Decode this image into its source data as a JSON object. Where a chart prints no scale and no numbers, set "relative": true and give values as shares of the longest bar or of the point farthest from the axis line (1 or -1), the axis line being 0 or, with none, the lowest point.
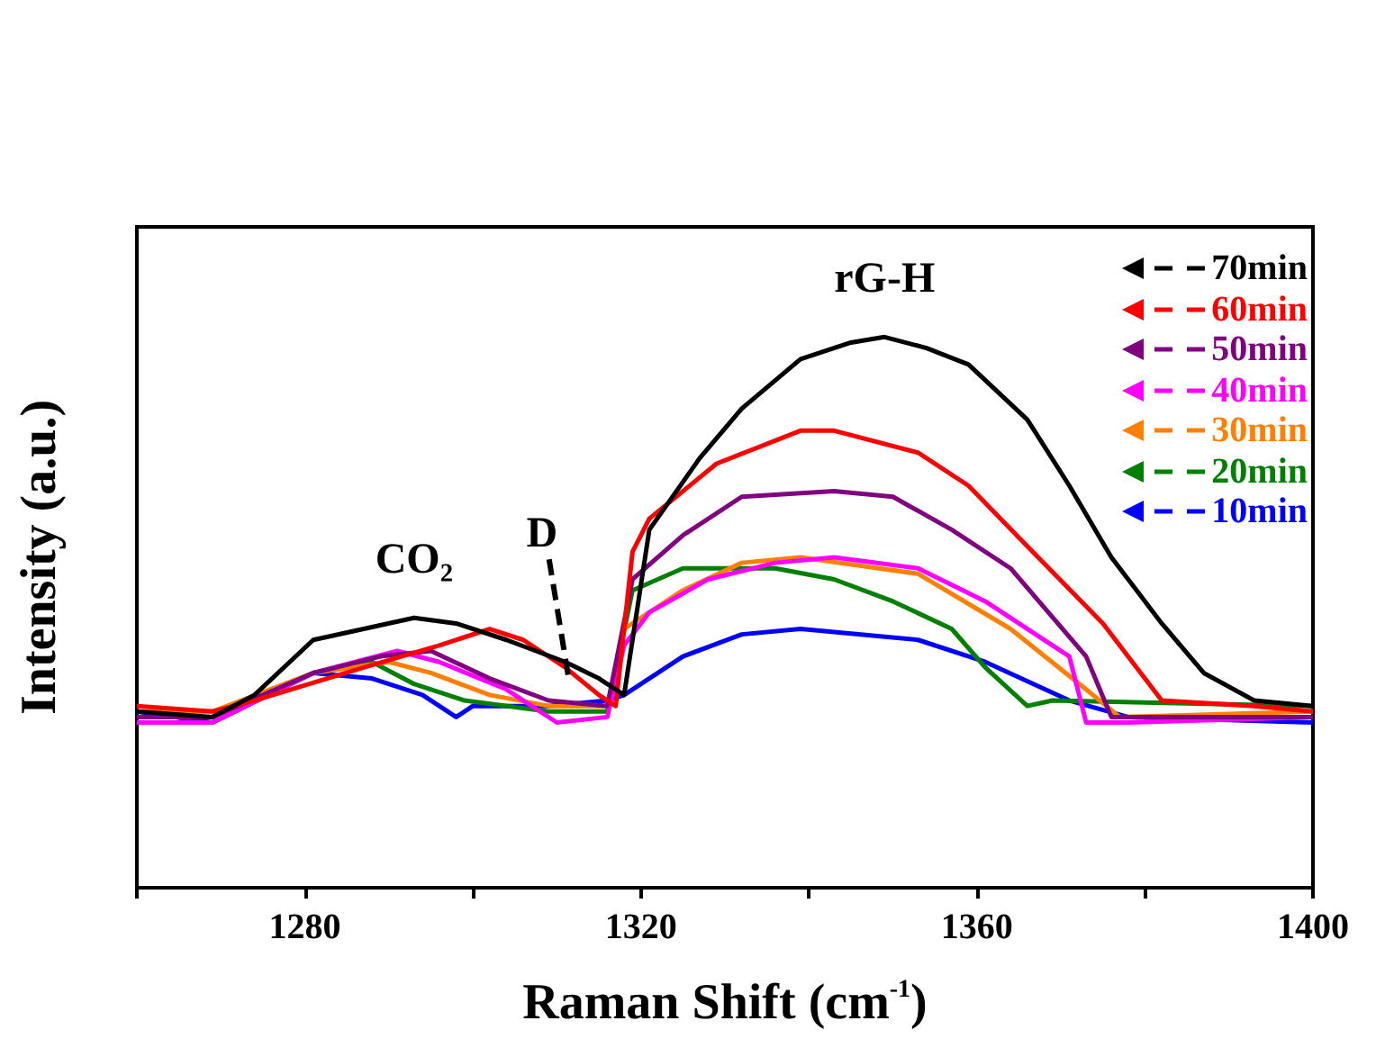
{
  "chart_data": {
    "type": "line",
    "relative": true,
    "xlabel": "Raman Shift (cm$^{-1}$)",
    "ylabel": "Intensity (a.u.)",
    "xlim": [
      1260,
      1400
    ],
    "xticks": [
      {
        "value": 1260,
        "label": null
      },
      1280,
      {
        "value": 1300,
        "label": null
      },
      1320,
      {
        "value": 1340,
        "label": null
      },
      1360,
      {
        "value": 1380,
        "label": null
      },
      1400
    ],
    "grid": false,
    "legend": "top right",
    "annotations": [
      {
        "text": "CO₂",
        "x": 1293,
        "y": 0.49
      },
      {
        "text": "D",
        "x": 1311,
        "y": 0.41
      },
      {
        "text": "rG-H",
        "x": 1349,
        "y": 1.0
      }
    ],
    "series": [
      {
        "name": "70min",
        "color": "#000000",
        "x": [
          1260,
          1269,
          1274,
          1281,
          1287,
          1293,
          1298,
          1304,
          1311,
          1315,
          1318,
          1321,
          1327,
          1332,
          1339,
          1345,
          1349,
          1354,
          1359,
          1366,
          1371,
          1376,
          1382,
          1387,
          1393,
          1400
        ],
        "values": [
          0.32,
          0.31,
          0.35,
          0.45,
          0.47,
          0.49,
          0.48,
          0.45,
          0.41,
          0.38,
          0.35,
          0.65,
          0.78,
          0.87,
          0.96,
          0.99,
          1.0,
          0.98,
          0.95,
          0.85,
          0.73,
          0.6,
          0.48,
          0.39,
          0.34,
          0.33
        ]
      },
      {
        "name": "60min",
        "color": "#ff0000",
        "x": [
          1260,
          1269,
          1274,
          1287,
          1296,
          1302,
          1306,
          1311,
          1315,
          1317,
          1319,
          1321,
          1329,
          1339,
          1343,
          1353,
          1359,
          1366,
          1375,
          1382,
          1393,
          1400
        ],
        "values": [
          0.33,
          0.32,
          0.34,
          0.4,
          0.44,
          0.47,
          0.45,
          0.4,
          0.35,
          0.33,
          0.61,
          0.67,
          0.77,
          0.83,
          0.83,
          0.79,
          0.73,
          0.62,
          0.48,
          0.34,
          0.33,
          0.32
        ]
      },
      {
        "name": "50min",
        "color": "#800080",
        "x": [
          1260,
          1269,
          1281,
          1289,
          1295,
          1302,
          1309,
          1316,
          1319,
          1325,
          1332,
          1343,
          1350,
          1357,
          1364,
          1373,
          1376,
          1386,
          1400
        ],
        "values": [
          0.31,
          0.31,
          0.39,
          0.42,
          0.43,
          0.38,
          0.34,
          0.33,
          0.56,
          0.64,
          0.71,
          0.72,
          0.71,
          0.65,
          0.58,
          0.42,
          0.31,
          0.31,
          0.31
        ]
      },
      {
        "name": "40min",
        "color": "#ff00ff",
        "x": [
          1260,
          1269,
          1281,
          1291,
          1296,
          1304,
          1310,
          1316,
          1318,
          1321,
          1328,
          1336,
          1343,
          1353,
          1361,
          1371,
          1373,
          1378,
          1400
        ],
        "values": [
          0.3,
          0.3,
          0.39,
          0.43,
          0.41,
          0.36,
          0.3,
          0.31,
          0.44,
          0.5,
          0.56,
          0.59,
          0.6,
          0.58,
          0.52,
          0.42,
          0.3,
          0.3,
          0.31
        ]
      },
      {
        "name": "30min",
        "color": "#ff8000",
        "x": [
          1260,
          1269,
          1281,
          1290,
          1295,
          1302,
          1309,
          1316,
          1318,
          1325,
          1332,
          1339,
          1353,
          1364,
          1373,
          1377,
          1400
        ],
        "values": [
          0.32,
          0.32,
          0.39,
          0.41,
          0.39,
          0.35,
          0.33,
          0.33,
          0.47,
          0.54,
          0.59,
          0.6,
          0.57,
          0.47,
          0.36,
          0.31,
          0.32
        ]
      },
      {
        "name": "20min",
        "color": "#008000",
        "x": [
          1281,
          1288,
          1293,
          1299,
          1309,
          1316,
          1319,
          1325,
          1336,
          1343,
          1350,
          1357,
          1361,
          1366,
          1369,
          1400
        ],
        "values": [
          0.39,
          0.41,
          0.37,
          0.34,
          0.32,
          0.32,
          0.54,
          0.58,
          0.58,
          0.56,
          0.52,
          0.47,
          0.4,
          0.33,
          0.34,
          0.33
        ]
      },
      {
        "name": "10min",
        "color": "#0000ff",
        "x": [
          1260,
          1269,
          1281,
          1288,
          1294,
          1298,
          1300,
          1309,
          1316,
          1318,
          1325,
          1332,
          1339,
          1353,
          1361,
          1371,
          1378,
          1400
        ],
        "values": [
          0.32,
          0.3,
          0.39,
          0.38,
          0.35,
          0.31,
          0.33,
          0.33,
          0.34,
          0.35,
          0.42,
          0.46,
          0.47,
          0.45,
          0.41,
          0.34,
          0.31,
          0.3
        ]
      }
    ]
  }
}
